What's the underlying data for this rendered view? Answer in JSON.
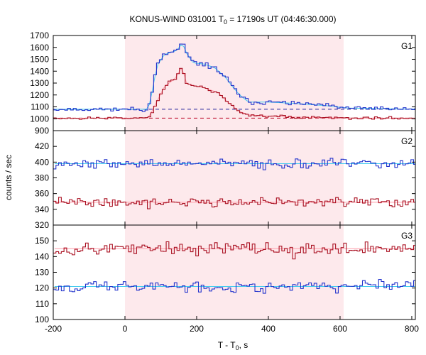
{
  "chart_data": {
    "type": "line",
    "title": "KONUS-WIND 031001 T",
    "title_sub": "0",
    "title_rest": " = 17190s UT (04:46:30.000)",
    "xlabel": "T - T",
    "xlabel_sub": "0",
    "xlabel_rest": ", s",
    "ylabel": "counts / sec",
    "xlim": [
      -200,
      810
    ],
    "xticks": [
      -200,
      0,
      200,
      400,
      600,
      800
    ],
    "xtick_labels": [
      "-200",
      "0",
      "200",
      "400",
      "600",
      "800"
    ],
    "highlight_interval": [
      0,
      610
    ],
    "colors": {
      "highlight": "#fde9ec",
      "blue": "#2233cc",
      "red": "#aa1122",
      "fit_cyan": "#44ccee",
      "fit_pink": "#ff9aa8",
      "fit_darkblue": "#222299",
      "fit_darkred": "#bb0022"
    },
    "panels": [
      {
        "label": "G1",
        "ylim": [
          900,
          1700
        ],
        "yticks": [
          900,
          1000,
          1100,
          1200,
          1300,
          1400,
          1500,
          1600,
          1700
        ],
        "ytick_labels": [
          "900",
          "1000",
          "1100",
          "1200",
          "1300",
          "1400",
          "1500",
          "1600",
          "1700"
        ],
        "background_levels": [
          {
            "name": "",
            "value": 1080,
            "color": "#222299"
          },
          {
            "name": "",
            "value": 1005,
            "color": "#bb0022"
          }
        ],
        "series": [
          {
            "name": "",
            "color": "#2233cc",
            "step": 8.0,
            "start": -200,
            "base": 1080,
            "noise": 14,
            "seed": 11,
            "profile": [
              [
                60,
                1080
              ],
              [
                70,
                1130
              ],
              [
                80,
                1300
              ],
              [
                90,
                1450
              ],
              [
                110,
                1540
              ],
              [
                140,
                1570
              ],
              [
                150,
                1590
              ],
              [
                160,
                1640
              ],
              [
                170,
                1560
              ],
              [
                190,
                1470
              ],
              [
                220,
                1460
              ],
              [
                250,
                1430
              ],
              [
                280,
                1350
              ],
              [
                300,
                1270
              ],
              [
                320,
                1200
              ],
              [
                345,
                1140
              ],
              [
                400,
                1140
              ],
              [
                470,
                1130
              ],
              [
                560,
                1110
              ],
              [
                620,
                1090
              ],
              [
                810,
                1080
              ]
            ],
            "fit": {
              "color": "#44ccee"
            }
          },
          {
            "name": "",
            "color": "#aa1122",
            "step": 8.0,
            "start": -200,
            "base": 1005,
            "noise": 10,
            "seed": 23,
            "profile": [
              [
                60,
                1005
              ],
              [
                70,
                1030
              ],
              [
                90,
                1150
              ],
              [
                110,
                1270
              ],
              [
                140,
                1340
              ],
              [
                160,
                1440
              ],
              [
                170,
                1300
              ],
              [
                190,
                1280
              ],
              [
                220,
                1260
              ],
              [
                260,
                1220
              ],
              [
                290,
                1130
              ],
              [
                320,
                1060
              ],
              [
                350,
                1030
              ],
              [
                420,
                1020
              ],
              [
                520,
                1010
              ],
              [
                620,
                1005
              ],
              [
                810,
                1005
              ]
            ],
            "fit": {
              "color": "#ff9aa8"
            }
          }
        ]
      },
      {
        "label": "G2",
        "ylim": [
          320,
          440
        ],
        "yticks": [
          320,
          340,
          360,
          380,
          400,
          420
        ],
        "ytick_labels": [
          "320",
          "340",
          "360",
          "380",
          "400",
          "420"
        ],
        "background_levels": [],
        "series": [
          {
            "name": "",
            "color": "#2233cc",
            "step": 7.5,
            "start": -200,
            "base": 398,
            "noise": 5,
            "seed": 37,
            "profile": [],
            "fit": {
              "color": "#44ccee"
            }
          },
          {
            "name": "",
            "color": "#aa1122",
            "step": 7.5,
            "start": -200,
            "base": 349,
            "noise": 5,
            "seed": 41,
            "profile": [],
            "fit": {
              "color": "#ff9aa8"
            }
          }
        ]
      },
      {
        "label": "G3",
        "ylim": [
          100,
          160
        ],
        "yticks": [
          100,
          110,
          120,
          130,
          140,
          150
        ],
        "ytick_labels": [
          "100",
          "110",
          "120",
          "130",
          "140",
          "150"
        ],
        "background_levels": [],
        "series": [
          {
            "name": "",
            "color": "#aa1122",
            "step": 7.5,
            "start": -200,
            "base": 145,
            "noise": 3.5,
            "seed": 53,
            "profile": [],
            "fit": {
              "color": "#ff9aa8"
            }
          },
          {
            "name": "",
            "color": "#2233cc",
            "step": 7.5,
            "start": -200,
            "base": 121,
            "noise": 3,
            "seed": 67,
            "profile": [],
            "fit": {
              "color": "#44ccee"
            }
          }
        ]
      }
    ]
  }
}
